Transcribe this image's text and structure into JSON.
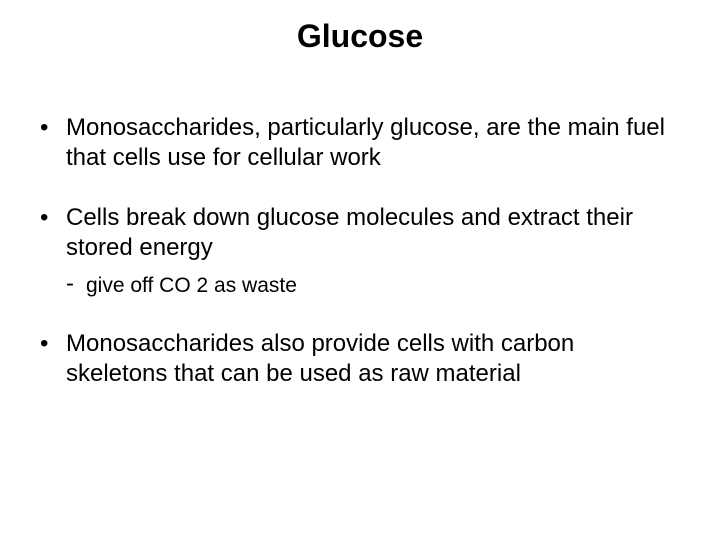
{
  "title": "Glucose",
  "bullets": [
    {
      "level": 1,
      "text": "Monosaccharides, particularly glucose, are the main fuel that cells use for cellular work"
    },
    {
      "level": 1,
      "text": "Cells break down glucose molecules and extract their stored energy",
      "tight": true
    },
    {
      "level": 2,
      "text": "give off CO 2 as waste"
    },
    {
      "level": 1,
      "text": "Monosaccharides also provide cells with carbon skeletons that can be used as raw material"
    }
  ],
  "markers": {
    "l1": "•",
    "l2": "-"
  },
  "colors": {
    "background": "#ffffff",
    "text": "#000000"
  },
  "fonts": {
    "title_size": 32,
    "body_size": 24,
    "sub_size": 21
  }
}
